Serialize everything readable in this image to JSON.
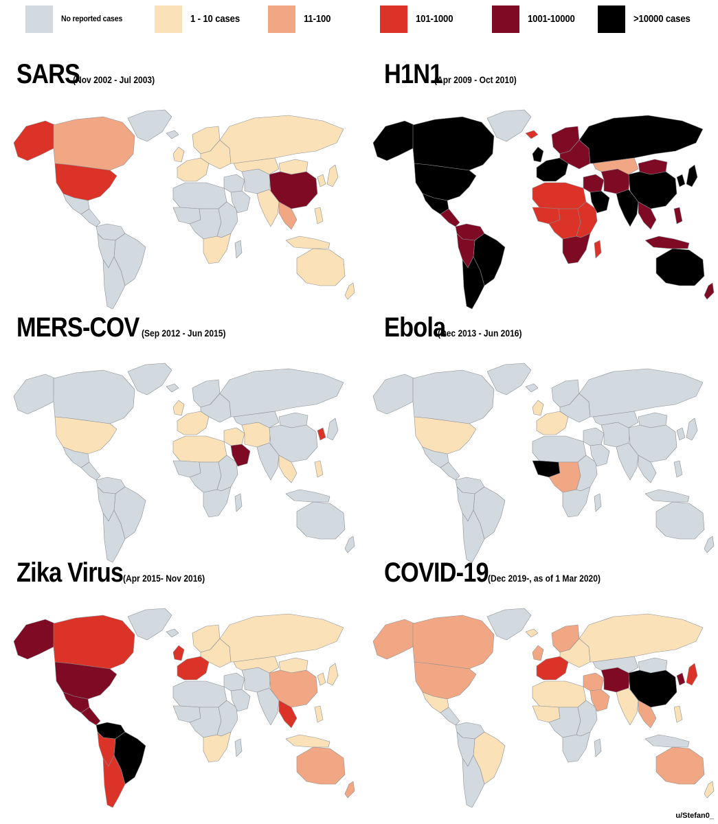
{
  "legend": [
    {
      "label": "No reported cases",
      "color": "#d2d9df"
    },
    {
      "label": "1 - 10 cases",
      "color": "#fbe1b8"
    },
    {
      "label": "11-100",
      "color": "#f2a784"
    },
    {
      "label": "101-1000",
      "color": "#db3328"
    },
    {
      "label": "1001-10000",
      "color": "#7f0a24"
    },
    {
      "label": ">10000 cases",
      "color": "#000000"
    }
  ],
  "maps": [
    {
      "disease": "SARS",
      "period": "(Nov 2002 - Jul 2003)",
      "regions": {
        "alaska": 3,
        "canada": 2,
        "greenland": 0,
        "usa": 3,
        "mexico": 0,
        "central_america": 0,
        "colombia_venezuela": 0,
        "brazil": 0,
        "andes": 0,
        "southern_cone": 0,
        "iceland": 0,
        "uk_ireland": 1,
        "scandinavia": 1,
        "west_europe": 1,
        "east_europe": 1,
        "russia": 1,
        "north_africa": 0,
        "west_africa": 0,
        "central_africa": 0,
        "east_africa": 0,
        "south_africa": 1,
        "madagascar": 0,
        "middle_east": 0,
        "arabia": 0,
        "iran_central_asia": 0,
        "kazakhstan": 1,
        "mongolia": 1,
        "china": 4,
        "india": 1,
        "southeast_asia": 2,
        "korea": 1,
        "japan": 1,
        "indonesia": 1,
        "philippines": 1,
        "australia": 1,
        "new_zealand": 1
      }
    },
    {
      "disease": "H1N1",
      "period": "(Apr 2009 - Oct 2010)",
      "regions": {
        "alaska": 5,
        "canada": 5,
        "greenland": 0,
        "usa": 5,
        "mexico": 5,
        "central_america": 4,
        "colombia_venezuela": 4,
        "brazil": 5,
        "andes": 4,
        "southern_cone": 5,
        "iceland": 3,
        "uk_ireland": 5,
        "scandinavia": 4,
        "west_europe": 5,
        "east_europe": 4,
        "russia": 5,
        "north_africa": 3,
        "west_africa": 3,
        "central_africa": 3,
        "east_africa": 3,
        "south_africa": 4,
        "madagascar": 3,
        "middle_east": 4,
        "arabia": 5,
        "iran_central_asia": 4,
        "kazakhstan": 2,
        "mongolia": 4,
        "china": 5,
        "india": 5,
        "southeast_asia": 4,
        "korea": 5,
        "japan": 5,
        "indonesia": 4,
        "philippines": 4,
        "australia": 5,
        "new_zealand": 4
      }
    },
    {
      "disease": "MERS-COV",
      "period": "(Sep 2012 - Jun 2015)",
      "regions": {
        "alaska": 0,
        "canada": 0,
        "greenland": 0,
        "usa": 1,
        "mexico": 0,
        "central_america": 0,
        "colombia_venezuela": 0,
        "brazil": 0,
        "andes": 0,
        "southern_cone": 0,
        "iceland": 0,
        "uk_ireland": 1,
        "scandinavia": 0,
        "west_europe": 1,
        "east_europe": 0,
        "russia": 0,
        "north_africa": 1,
        "west_africa": 0,
        "central_africa": 0,
        "east_africa": 0,
        "south_africa": 0,
        "madagascar": 0,
        "middle_east": 1,
        "arabia": 4,
        "iran_central_asia": 1,
        "kazakhstan": 0,
        "mongolia": 0,
        "china": 0,
        "india": 0,
        "southeast_asia": 1,
        "korea": 3,
        "japan": 0,
        "indonesia": 0,
        "philippines": 1,
        "australia": 0,
        "new_zealand": 0
      }
    },
    {
      "disease": "Ebola",
      "period": "(Dec 2013 - Jun 2016)",
      "regions": {
        "alaska": 0,
        "canada": 0,
        "greenland": 0,
        "usa": 1,
        "mexico": 0,
        "central_america": 0,
        "colombia_venezuela": 0,
        "brazil": 0,
        "andes": 0,
        "southern_cone": 0,
        "iceland": 0,
        "uk_ireland": 1,
        "scandinavia": 0,
        "west_europe": 1,
        "east_europe": 0,
        "russia": 0,
        "north_africa": 0,
        "west_africa": 5,
        "central_africa": 2,
        "east_africa": 0,
        "south_africa": 0,
        "madagascar": 0,
        "middle_east": 0,
        "arabia": 0,
        "iran_central_asia": 0,
        "kazakhstan": 0,
        "mongolia": 0,
        "china": 0,
        "india": 0,
        "southeast_asia": 0,
        "korea": 0,
        "japan": 0,
        "indonesia": 0,
        "philippines": 0,
        "australia": 0,
        "new_zealand": 0
      }
    },
    {
      "disease": "Zika Virus",
      "period": "(Apr 2015- Nov 2016)",
      "regions": {
        "alaska": 4,
        "canada": 3,
        "greenland": 0,
        "usa": 4,
        "mexico": 4,
        "central_america": 4,
        "colombia_venezuela": 5,
        "brazil": 5,
        "andes": 3,
        "southern_cone": 3,
        "iceland": 0,
        "uk_ireland": 3,
        "scandinavia": 1,
        "west_europe": 3,
        "east_europe": 1,
        "russia": 1,
        "north_africa": 0,
        "west_africa": 0,
        "central_africa": 0,
        "east_africa": 0,
        "south_africa": 1,
        "madagascar": 0,
        "middle_east": 0,
        "arabia": 0,
        "iran_central_asia": 0,
        "kazakhstan": 1,
        "mongolia": 1,
        "china": 2,
        "india": 0,
        "southeast_asia": 3,
        "korea": 1,
        "japan": 1,
        "indonesia": 1,
        "philippines": 1,
        "australia": 2,
        "new_zealand": 2
      }
    },
    {
      "disease": "COVID-19",
      "period": "(Dec 2019-, as of 1 Mar 2020)",
      "regions": {
        "alaska": 2,
        "canada": 2,
        "greenland": 0,
        "usa": 2,
        "mexico": 1,
        "central_america": 0,
        "colombia_venezuela": 0,
        "brazil": 1,
        "andes": 0,
        "southern_cone": 0,
        "iceland": 1,
        "uk_ireland": 2,
        "scandinavia": 2,
        "west_europe": 3,
        "east_europe": 1,
        "russia": 1,
        "north_africa": 1,
        "west_africa": 1,
        "central_africa": 0,
        "east_africa": 0,
        "south_africa": 0,
        "madagascar": 0,
        "middle_east": 2,
        "arabia": 2,
        "iran_central_asia": 4,
        "kazakhstan": 0,
        "mongolia": 0,
        "china": 5,
        "india": 1,
        "southeast_asia": 2,
        "korea": 4,
        "japan": 3,
        "indonesia": 0,
        "philippines": 1,
        "australia": 2,
        "new_zealand": 1
      }
    }
  ],
  "credit": "u/Stefan0_"
}
